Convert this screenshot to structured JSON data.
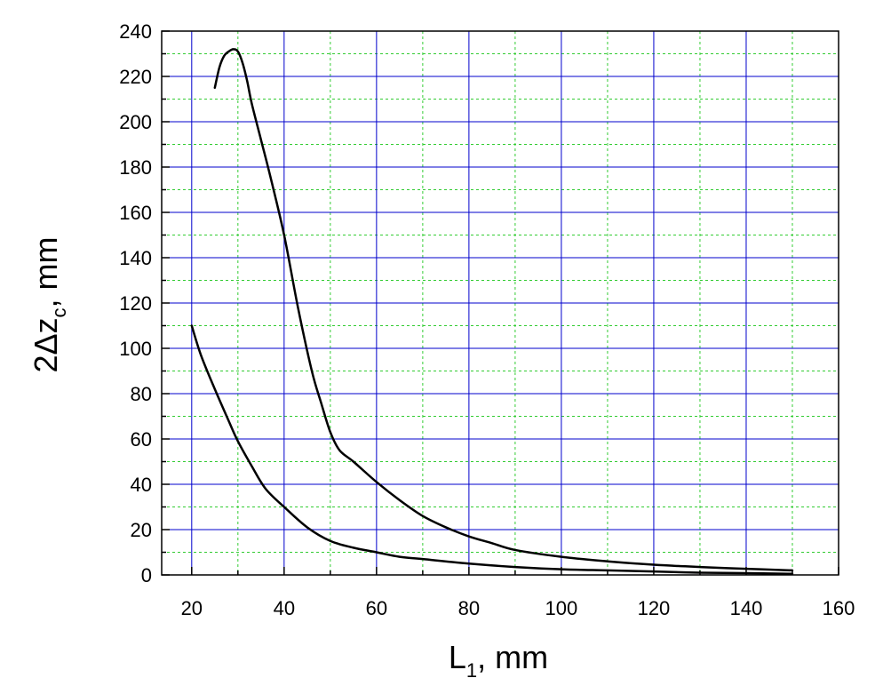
{
  "chart_data": {
    "type": "line",
    "title": "",
    "xlabel": {
      "main": "L",
      "sub": "1",
      "rest": ", mm"
    },
    "ylabel": {
      "main": "2Δz",
      "sub": "c",
      "rest": ", mm"
    },
    "xlim": [
      13.5,
      160
    ],
    "ylim": [
      0,
      240
    ],
    "xticks": [
      20,
      40,
      60,
      80,
      100,
      120,
      140,
      160
    ],
    "yticks": [
      0,
      20,
      40,
      60,
      80,
      100,
      120,
      140,
      160,
      180,
      200,
      220,
      240
    ],
    "major_grid": true,
    "minor_grid": true,
    "legend": "none",
    "colors": {
      "major_grid": "#0000cc",
      "minor_grid": "#33cc33",
      "series": "#000000"
    },
    "series": [
      {
        "x": [
          25,
          26,
          27,
          28,
          29,
          30,
          31,
          32,
          33,
          35,
          37,
          40,
          43,
          46,
          48,
          50,
          52,
          55,
          60,
          65,
          70,
          75,
          80,
          85,
          90,
          100,
          110,
          120,
          130,
          140,
          150
        ],
        "y": [
          215,
          224,
          229,
          231,
          232,
          231,
          226,
          218,
          208,
          192,
          176,
          150,
          118,
          90,
          76,
          63,
          55,
          50,
          41,
          33,
          26,
          21,
          17,
          14,
          11,
          8,
          6,
          4.5,
          3.5,
          2.7,
          2
        ]
      },
      {
        "x": [
          20,
          22,
          25,
          28,
          30,
          33,
          36,
          40,
          45,
          50,
          55,
          60,
          65,
          70,
          80,
          90,
          100,
          110,
          120,
          130,
          140,
          150
        ],
        "y": [
          110,
          97,
          82,
          68,
          59,
          48,
          38,
          30,
          21,
          15,
          12,
          10,
          8,
          7,
          5,
          3.5,
          2.5,
          2,
          1.5,
          1,
          0.8,
          0.5
        ]
      }
    ]
  }
}
